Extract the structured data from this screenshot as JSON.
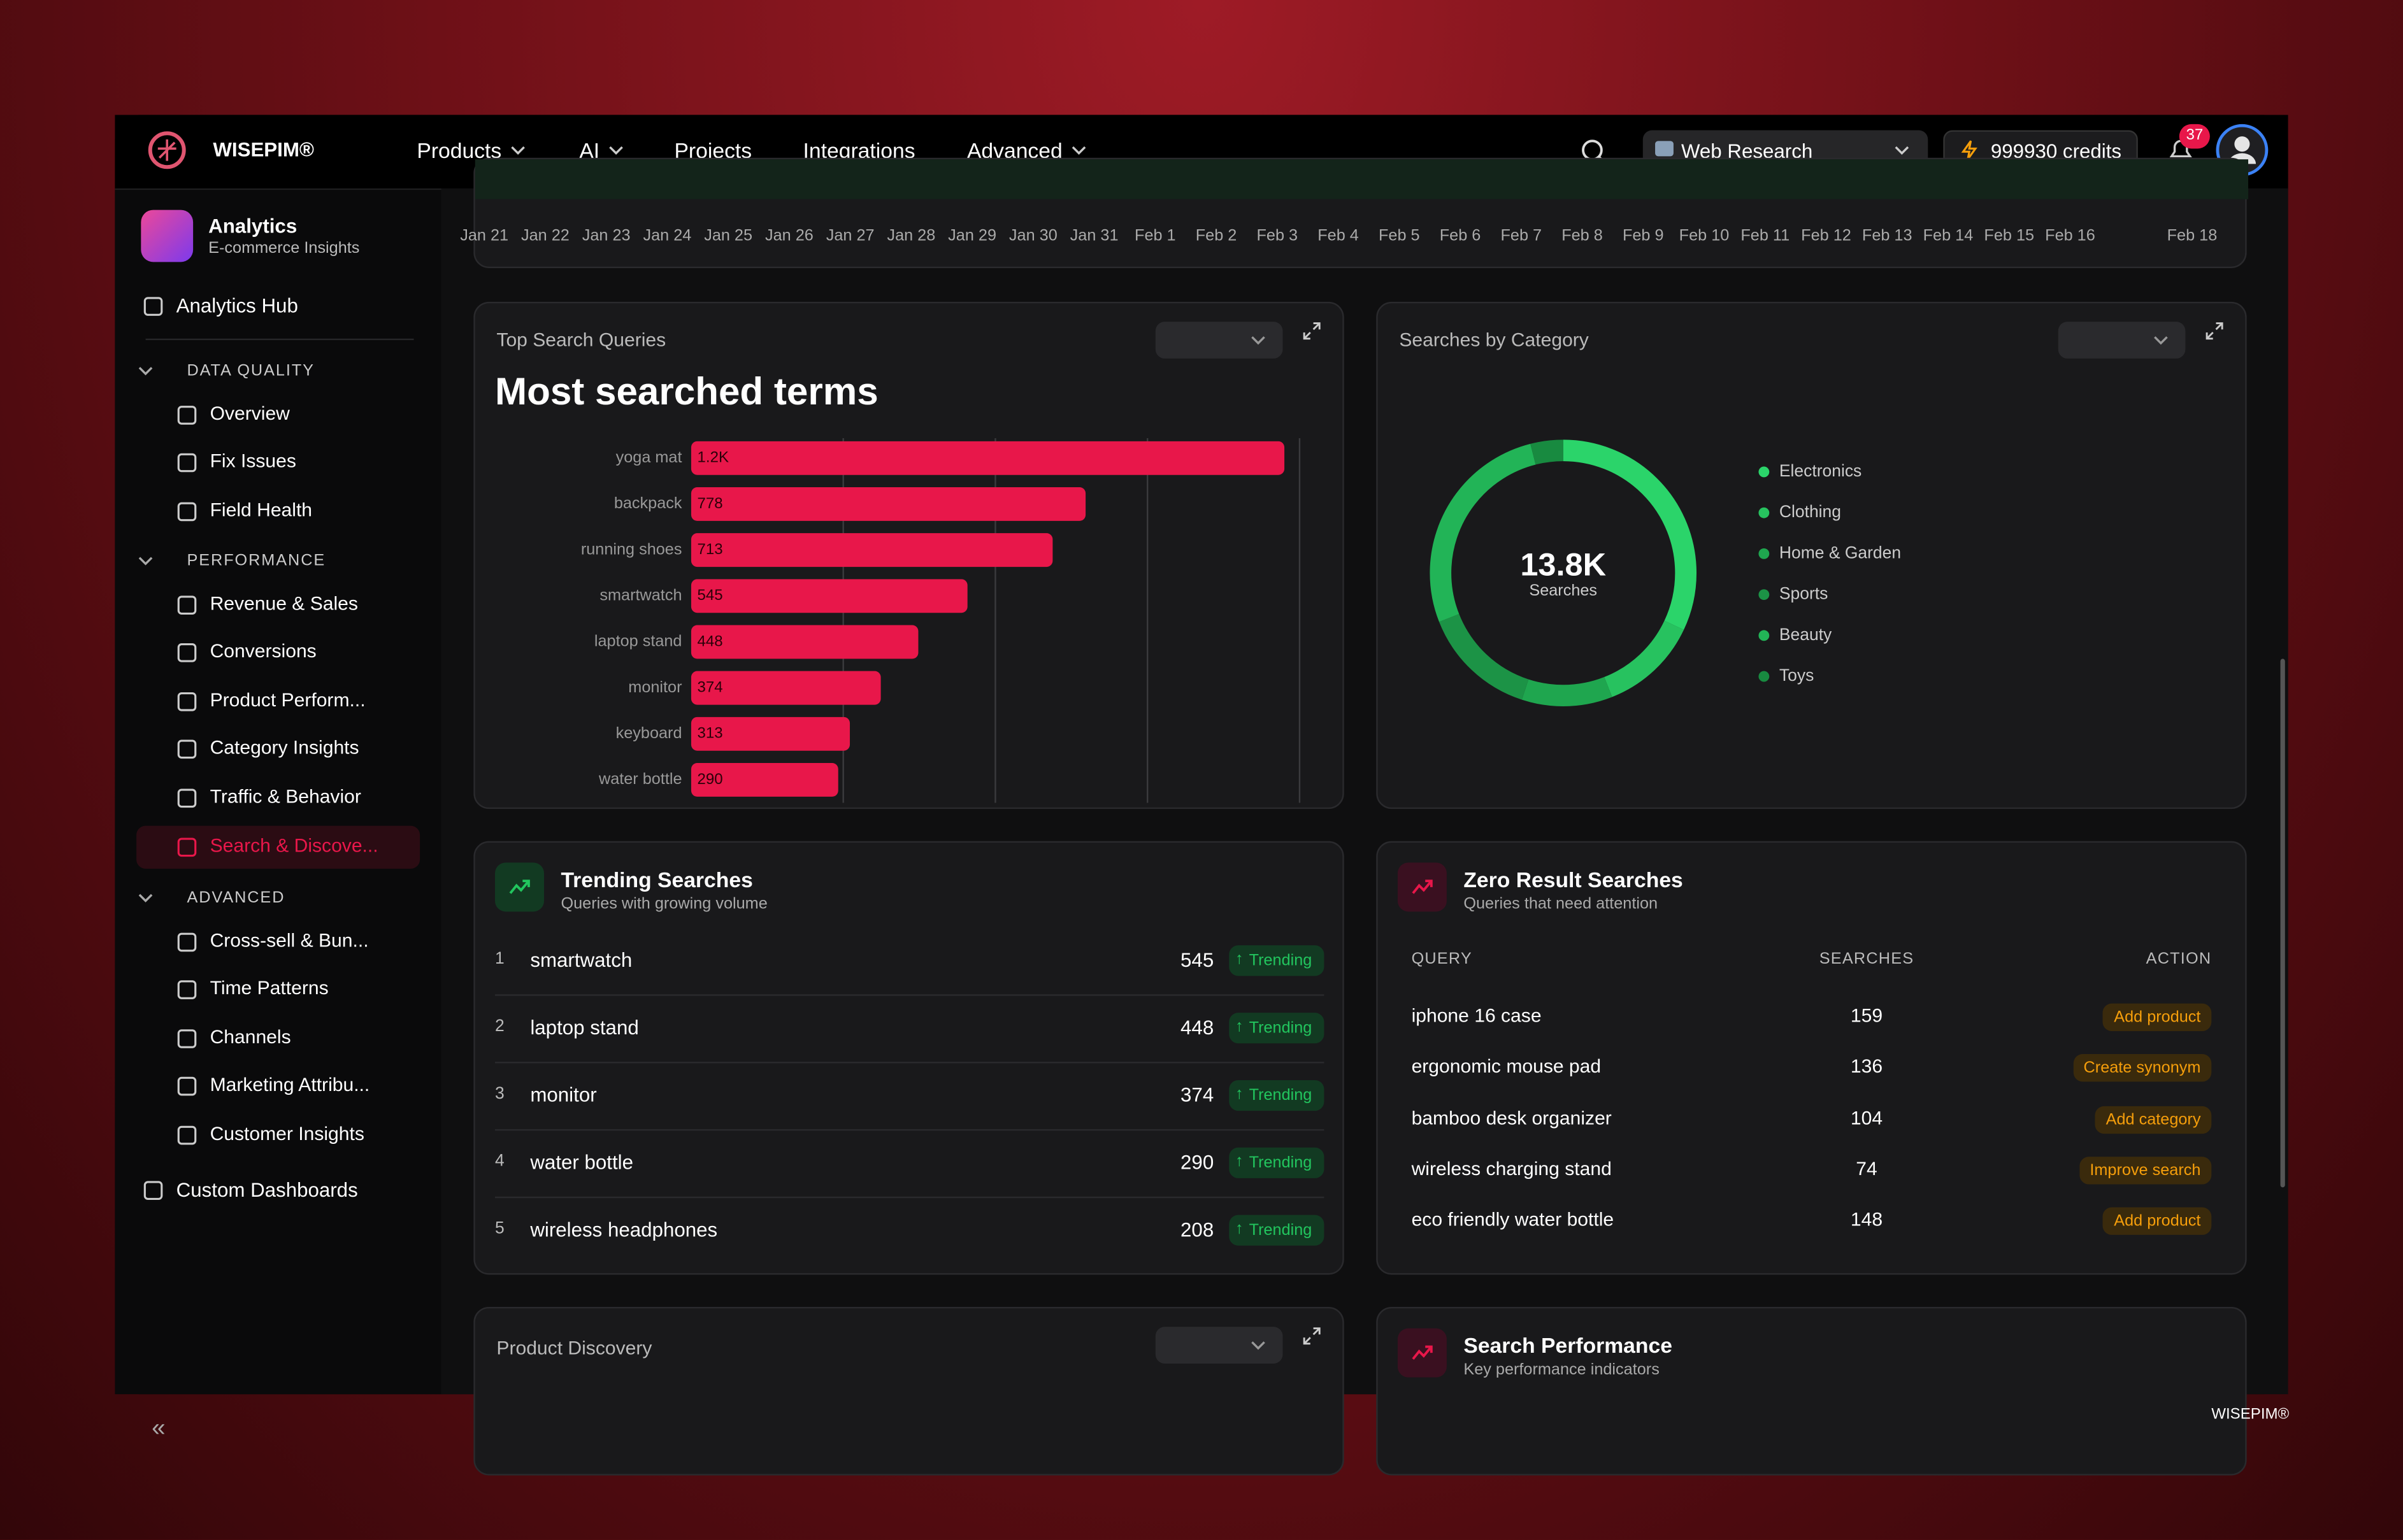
{
  "nav": {
    "brand": "WISEPIM®",
    "menu": [
      "Products",
      "AI",
      "Projects",
      "Integrations",
      "Advanced"
    ],
    "workspace": "Web Research",
    "credits": "999930 credits",
    "notifications": "37"
  },
  "sidebar": {
    "app_title": "Analytics",
    "app_subtitle": "E-commerce Insights",
    "hub": "Analytics Hub",
    "sections": [
      {
        "title": "DATA QUALITY",
        "items": [
          "Overview",
          "Fix Issues",
          "Field Health"
        ]
      },
      {
        "title": "PERFORMANCE",
        "items": [
          "Revenue & Sales",
          "Conversions",
          "Product Perform...",
          "Category Insights",
          "Traffic & Behavior",
          "Search & Discove..."
        ]
      },
      {
        "title": "ADVANCED",
        "items": [
          "Cross-sell & Bun...",
          "Time Patterns",
          "Channels",
          "Marketing Attribu...",
          "Customer Insights"
        ]
      }
    ],
    "custom": "Custom Dashboards"
  },
  "timeline": {
    "dates": [
      "Jan 21",
      "Jan 22",
      "Jan 23",
      "Jan 24",
      "Jan 25",
      "Jan 26",
      "Jan 27",
      "Jan 28",
      "Jan 29",
      "Jan 30",
      "Jan 31",
      "Feb 1",
      "Feb 2",
      "Feb 3",
      "Feb 4",
      "Feb 5",
      "Feb 6",
      "Feb 7",
      "Feb 8",
      "Feb 9",
      "Feb 10",
      "Feb 11",
      "Feb 12",
      "Feb 13",
      "Feb 14",
      "Feb 15",
      "Feb 16",
      null,
      "Feb 18"
    ]
  },
  "top_queries": {
    "card_title": "Top Search Queries",
    "heading": "Most searched terms",
    "type": "bar",
    "categories": [
      "yoga mat",
      "backpack",
      "running shoes",
      "smartwatch",
      "laptop stand",
      "monitor",
      "keyboard",
      "water bottle"
    ],
    "values": [
      1170,
      778,
      713,
      545,
      448,
      374,
      313,
      290
    ],
    "value_labels": [
      "1.2K",
      "778",
      "713",
      "545",
      "448",
      "374",
      "313",
      "290"
    ],
    "color": "#e8174a",
    "xlim": [
      0,
      1200
    ],
    "xticks": [
      300,
      600,
      900,
      1200
    ],
    "grid": true
  },
  "searches_by_category": {
    "card_title": "Searches by Category",
    "type": "pie",
    "total": "13.8K",
    "total_label": "Searches",
    "categories": [
      "Electronics",
      "Clothing",
      "Home & Garden",
      "Sports",
      "Beauty",
      "Toys"
    ],
    "values": [
      32,
      12,
      11,
      14,
      27,
      4
    ],
    "colors": [
      "#2bd46a",
      "#27c25f",
      "#1fa64f",
      "#1c9346",
      "#22b457",
      "#188a40"
    ]
  },
  "trending": {
    "title": "Trending Searches",
    "subtitle": "Queries with growing volume",
    "rows": [
      {
        "rank": 1,
        "query": "smartwatch",
        "searches": 545,
        "badge": "Trending"
      },
      {
        "rank": 2,
        "query": "laptop stand",
        "searches": 448,
        "badge": "Trending"
      },
      {
        "rank": 3,
        "query": "monitor",
        "searches": 374,
        "badge": "Trending"
      },
      {
        "rank": 4,
        "query": "water bottle",
        "searches": 290,
        "badge": "Trending"
      },
      {
        "rank": 5,
        "query": "wireless headphones",
        "searches": 208,
        "badge": "Trending"
      }
    ]
  },
  "zero_results": {
    "title": "Zero Result Searches",
    "subtitle": "Queries that need attention",
    "columns": [
      "QUERY",
      "SEARCHES",
      "ACTION"
    ],
    "rows": [
      {
        "query": "iphone 16 case",
        "searches": 159,
        "action": "Add product"
      },
      {
        "query": "ergonomic mouse pad",
        "searches": 136,
        "action": "Create synonym"
      },
      {
        "query": "bamboo desk organizer",
        "searches": 104,
        "action": "Add category"
      },
      {
        "query": "wireless charging stand",
        "searches": 74,
        "action": "Improve search"
      },
      {
        "query": "eco friendly water bottle",
        "searches": 148,
        "action": "Add product"
      }
    ]
  },
  "product_discovery": {
    "card_title": "Product Discovery"
  },
  "search_performance": {
    "title": "Search Performance",
    "subtitle": "Key performance indicators"
  },
  "footer": {
    "brand": "WISEPIM®"
  }
}
